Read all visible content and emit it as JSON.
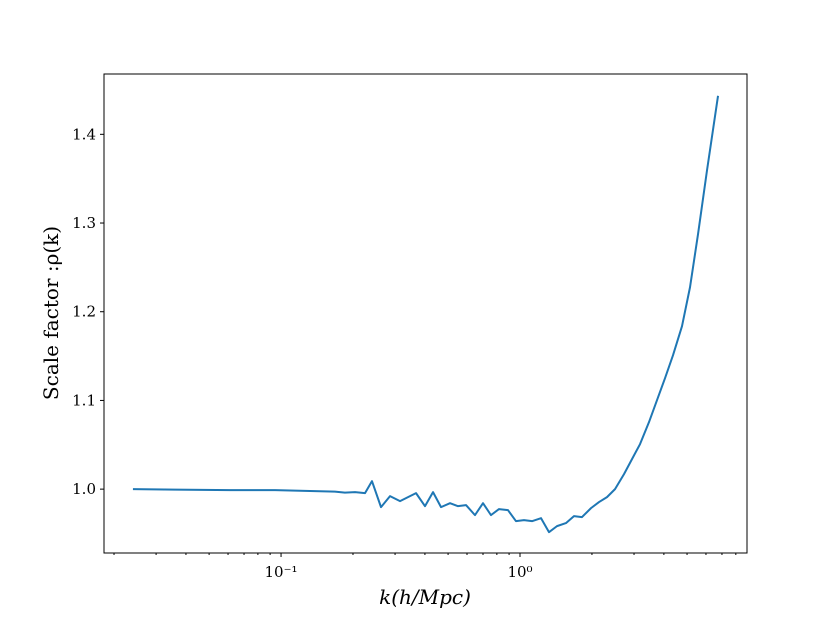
{
  "chart_data": {
    "type": "line",
    "xlabel": "k(h/Mpc)",
    "ylabel": "Scale factor :ρ(k)",
    "xscale": "log",
    "xlim": [
      0.01816,
      8.91
    ],
    "ylim": [
      0.928,
      1.468
    ],
    "xticks": [
      {
        "value": 0.1,
        "label": "10⁻¹"
      },
      {
        "value": 1,
        "label": "10⁰"
      }
    ],
    "yticks": [
      {
        "value": 1,
        "label": "1.0"
      },
      1.1,
      1.2,
      1.3,
      1.4
    ],
    "grid": false,
    "series": [
      {
        "color": "#1f77b4",
        "x": [
          0.024,
          0.036,
          0.0612,
          0.0944,
          0.168,
          0.185,
          0.204,
          0.2246,
          0.2402,
          0.262,
          0.2858,
          0.3147,
          0.3671,
          0.4004,
          0.4325,
          0.4672,
          0.5095,
          0.5502,
          0.5943,
          0.648,
          0.7001,
          0.7559,
          0.8167,
          0.8909,
          0.9622,
          1.039,
          1.123,
          1.224,
          1.322,
          1.428,
          1.557,
          1.682,
          1.817,
          1.982,
          2.141,
          2.312,
          2.498,
          2.724,
          2.942,
          3.178,
          3.465,
          3.743,
          4.044,
          4.368,
          4.763,
          5.145,
          5.557,
          6.06,
          6.74
        ],
        "values": [
          1.0,
          0.9994,
          0.9989,
          0.9989,
          0.9972,
          0.9961,
          0.9966,
          0.9955,
          1.009,
          0.9797,
          0.9921,
          0.9865,
          0.9955,
          0.9808,
          0.9966,
          0.9797,
          0.9842,
          0.9808,
          0.982,
          0.9707,
          0.9842,
          0.9707,
          0.9775,
          0.9763,
          0.9639,
          0.9651,
          0.9639,
          0.9673,
          0.9515,
          0.9583,
          0.9617,
          0.9696,
          0.9685,
          0.9786,
          0.9854,
          0.991,
          1.0,
          1.0169,
          1.0338,
          1.0507,
          1.0755,
          1.1003,
          1.1251,
          1.151,
          1.1837,
          1.2276,
          1.2873,
          1.3594,
          1.4434
        ]
      }
    ]
  }
}
